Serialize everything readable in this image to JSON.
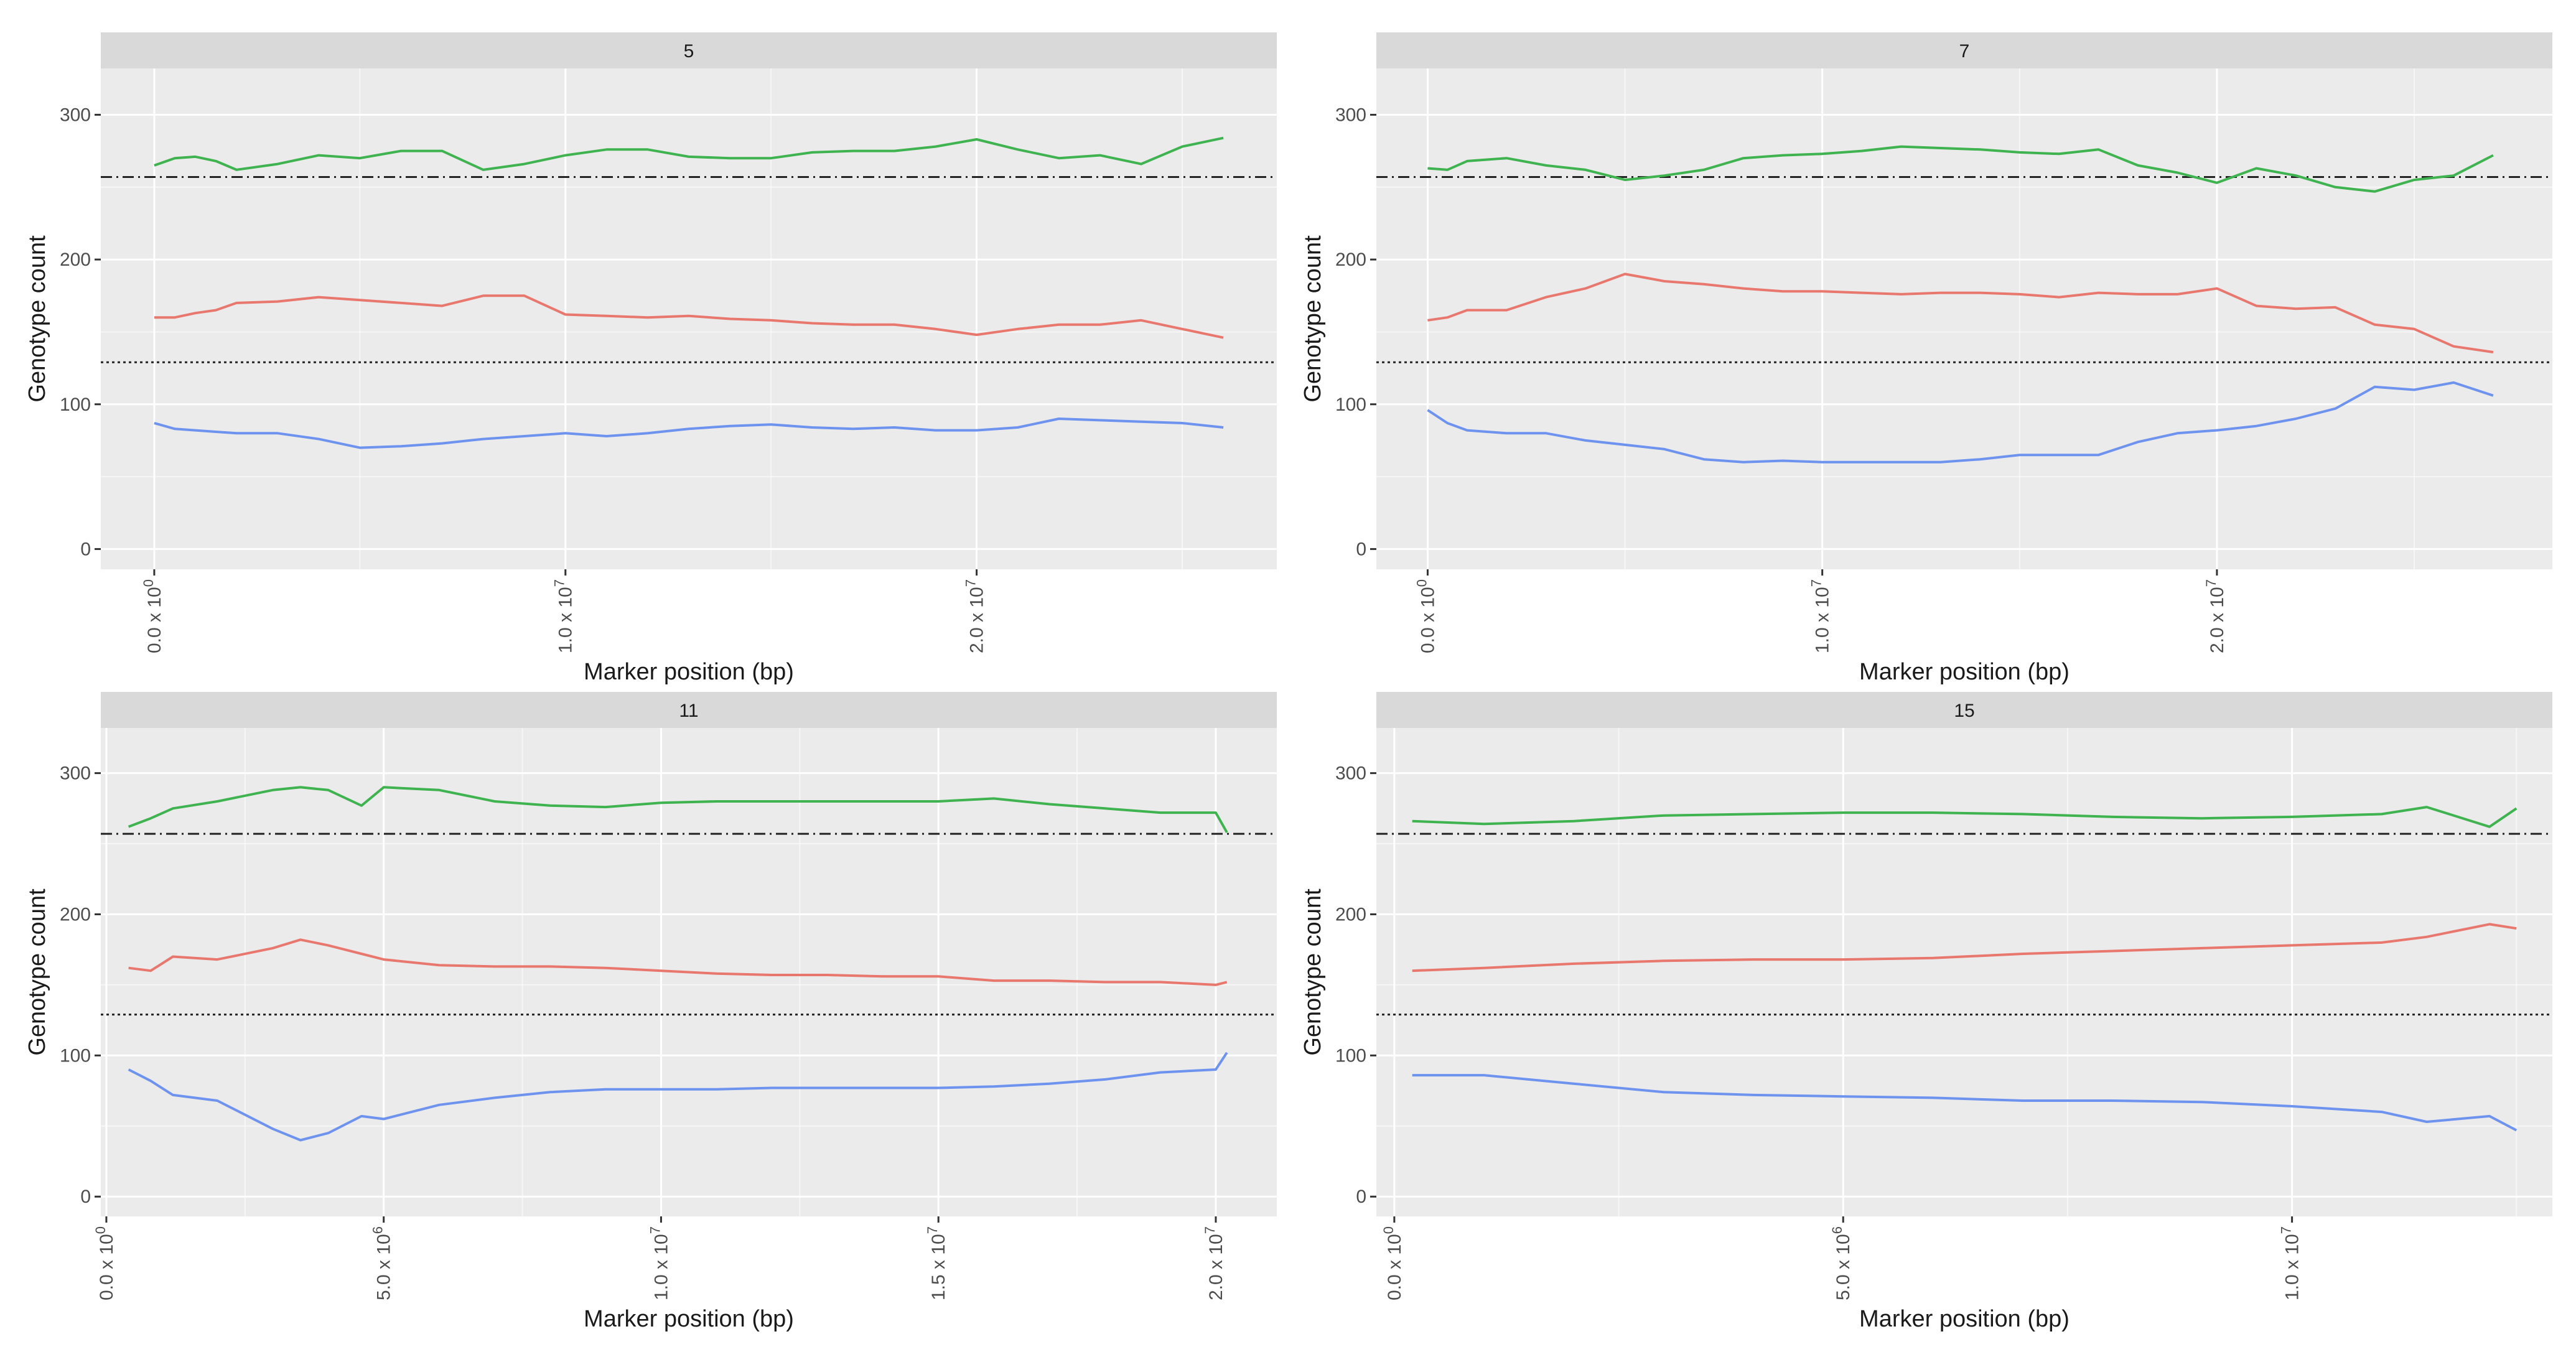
{
  "chart_data": [
    {
      "type": "line",
      "panel": "5",
      "xlabel": "Marker position (bp)",
      "ylabel": "Genotype count",
      "ylim": [
        -14,
        332
      ],
      "xlim": [
        -1300000,
        27300000
      ],
      "yticks": [
        0,
        100,
        200,
        300
      ],
      "xticks": [
        {
          "value": 0,
          "mantissa": "0.0",
          "exp": "0"
        },
        {
          "value": 10000000,
          "mantissa": "1.0",
          "exp": "7"
        },
        {
          "value": 20000000,
          "mantissa": "2.0",
          "exp": "7"
        }
      ],
      "hlines": [
        {
          "y": 257,
          "style": "dotdash"
        },
        {
          "y": 129,
          "style": "dotted"
        }
      ],
      "series": [
        {
          "name": "green",
          "color": "#3fb34f",
          "x": [
            0,
            500000,
            1000000,
            1500000,
            2000000,
            3000000,
            4000000,
            5000000,
            6000000,
            7000000,
            8000000,
            9000000,
            10000000,
            11000000,
            12000000,
            13000000,
            14000000,
            15000000,
            16000000,
            17000000,
            18000000,
            19000000,
            20000000,
            21000000,
            22000000,
            23000000,
            24000000,
            25000000,
            26000000
          ],
          "y": [
            265,
            270,
            271,
            268,
            262,
            266,
            272,
            270,
            275,
            275,
            262,
            266,
            272,
            276,
            276,
            271,
            270,
            270,
            274,
            275,
            275,
            278,
            283,
            276,
            270,
            272,
            266,
            278,
            284
          ]
        },
        {
          "name": "red",
          "color": "#e8776e",
          "x": [
            0,
            500000,
            1000000,
            1500000,
            2000000,
            3000000,
            4000000,
            5000000,
            6000000,
            7000000,
            8000000,
            9000000,
            10000000,
            11000000,
            12000000,
            13000000,
            14000000,
            15000000,
            16000000,
            17000000,
            18000000,
            19000000,
            20000000,
            21000000,
            22000000,
            23000000,
            24000000,
            25000000,
            26000000
          ],
          "y": [
            160,
            160,
            163,
            165,
            170,
            171,
            174,
            172,
            170,
            168,
            175,
            175,
            162,
            161,
            160,
            161,
            159,
            158,
            156,
            155,
            155,
            152,
            148,
            152,
            155,
            155,
            158,
            152,
            146
          ]
        },
        {
          "name": "blue",
          "color": "#6e93ee",
          "x": [
            0,
            500000,
            1000000,
            1500000,
            2000000,
            3000000,
            4000000,
            5000000,
            6000000,
            7000000,
            8000000,
            9000000,
            10000000,
            11000000,
            12000000,
            13000000,
            14000000,
            15000000,
            16000000,
            17000000,
            18000000,
            19000000,
            20000000,
            21000000,
            22000000,
            23000000,
            24000000,
            25000000,
            26000000
          ],
          "y": [
            87,
            83,
            82,
            81,
            80,
            80,
            76,
            70,
            71,
            73,
            76,
            78,
            80,
            78,
            80,
            83,
            85,
            86,
            84,
            83,
            84,
            82,
            82,
            84,
            90,
            89,
            88,
            87,
            84
          ]
        }
      ]
    },
    {
      "type": "line",
      "panel": "7",
      "xlabel": "Marker position (bp)",
      "ylabel": "Genotype count",
      "ylim": [
        -14,
        332
      ],
      "xlim": [
        -1300000,
        28500000
      ],
      "yticks": [
        0,
        100,
        200,
        300
      ],
      "xticks": [
        {
          "value": 0,
          "mantissa": "0.0",
          "exp": "0"
        },
        {
          "value": 10000000,
          "mantissa": "1.0",
          "exp": "7"
        },
        {
          "value": 20000000,
          "mantissa": "2.0",
          "exp": "7"
        }
      ],
      "hlines": [
        {
          "y": 257,
          "style": "dotdash"
        },
        {
          "y": 129,
          "style": "dotted"
        }
      ],
      "series": [
        {
          "name": "green",
          "color": "#3fb34f",
          "x": [
            0,
            500000,
            1000000,
            2000000,
            3000000,
            4000000,
            5000000,
            6000000,
            7000000,
            8000000,
            9000000,
            10000000,
            11000000,
            12000000,
            13000000,
            14000000,
            15000000,
            16000000,
            17000000,
            18000000,
            19000000,
            20000000,
            21000000,
            22000000,
            23000000,
            24000000,
            25000000,
            26000000,
            27000000
          ],
          "y": [
            263,
            262,
            268,
            270,
            265,
            262,
            255,
            258,
            262,
            270,
            272,
            273,
            275,
            278,
            277,
            276,
            274,
            273,
            276,
            265,
            260,
            253,
            263,
            258,
            250,
            247,
            255,
            258,
            272
          ]
        },
        {
          "name": "red",
          "color": "#e8776e",
          "x": [
            0,
            500000,
            1000000,
            2000000,
            3000000,
            4000000,
            5000000,
            6000000,
            7000000,
            8000000,
            9000000,
            10000000,
            11000000,
            12000000,
            13000000,
            14000000,
            15000000,
            16000000,
            17000000,
            18000000,
            19000000,
            20000000,
            21000000,
            22000000,
            23000000,
            24000000,
            25000000,
            26000000,
            27000000
          ],
          "y": [
            158,
            160,
            165,
            165,
            174,
            180,
            190,
            185,
            183,
            180,
            178,
            178,
            177,
            176,
            177,
            177,
            176,
            174,
            177,
            176,
            176,
            180,
            168,
            166,
            167,
            155,
            152,
            140,
            136
          ]
        },
        {
          "name": "blue",
          "color": "#6e93ee",
          "x": [
            0,
            500000,
            1000000,
            2000000,
            3000000,
            4000000,
            5000000,
            6000000,
            7000000,
            8000000,
            9000000,
            10000000,
            11000000,
            12000000,
            13000000,
            14000000,
            15000000,
            16000000,
            17000000,
            18000000,
            19000000,
            20000000,
            21000000,
            22000000,
            23000000,
            24000000,
            25000000,
            26000000,
            27000000
          ],
          "y": [
            96,
            87,
            82,
            80,
            80,
            75,
            72,
            69,
            62,
            60,
            61,
            60,
            60,
            60,
            60,
            62,
            65,
            65,
            65,
            74,
            80,
            82,
            85,
            90,
            97,
            112,
            110,
            115,
            106
          ]
        }
      ]
    },
    {
      "type": "line",
      "panel": "11",
      "xlabel": "Marker position (bp)",
      "ylabel": "Genotype count",
      "ylim": [
        -14,
        332
      ],
      "xlim": [
        -100000,
        21100000
      ],
      "yticks": [
        0,
        100,
        200,
        300
      ],
      "xticks": [
        {
          "value": 0,
          "mantissa": "0.0",
          "exp": "0"
        },
        {
          "value": 5000000,
          "mantissa": "5.0",
          "exp": "6"
        },
        {
          "value": 10000000,
          "mantissa": "1.0",
          "exp": "7"
        },
        {
          "value": 15000000,
          "mantissa": "1.5",
          "exp": "7"
        },
        {
          "value": 20000000,
          "mantissa": "2.0",
          "exp": "7"
        }
      ],
      "hlines": [
        {
          "y": 257,
          "style": "dotdash"
        },
        {
          "y": 129,
          "style": "dotted"
        }
      ],
      "series": [
        {
          "name": "green",
          "color": "#3fb34f",
          "x": [
            400000,
            800000,
            1200000,
            2000000,
            3000000,
            3500000,
            4000000,
            4600000,
            5000000,
            6000000,
            7000000,
            8000000,
            9000000,
            10000000,
            11000000,
            12000000,
            13000000,
            14000000,
            15000000,
            16000000,
            17000000,
            18000000,
            19000000,
            20000000,
            20200000
          ],
          "y": [
            262,
            268,
            275,
            280,
            288,
            290,
            288,
            277,
            290,
            288,
            280,
            277,
            276,
            279,
            280,
            280,
            280,
            280,
            280,
            282,
            278,
            275,
            272,
            272,
            258
          ]
        },
        {
          "name": "red",
          "color": "#e8776e",
          "x": [
            400000,
            800000,
            1200000,
            2000000,
            3000000,
            3500000,
            4000000,
            4600000,
            5000000,
            6000000,
            7000000,
            8000000,
            9000000,
            10000000,
            11000000,
            12000000,
            13000000,
            14000000,
            15000000,
            16000000,
            17000000,
            18000000,
            19000000,
            20000000,
            20200000
          ],
          "y": [
            162,
            160,
            170,
            168,
            176,
            182,
            178,
            172,
            168,
            164,
            163,
            163,
            162,
            160,
            158,
            157,
            157,
            156,
            156,
            153,
            153,
            152,
            152,
            150,
            152
          ]
        },
        {
          "name": "blue",
          "color": "#6e93ee",
          "x": [
            400000,
            800000,
            1200000,
            2000000,
            3000000,
            3500000,
            4000000,
            4600000,
            5000000,
            6000000,
            7000000,
            8000000,
            9000000,
            10000000,
            11000000,
            12000000,
            13000000,
            14000000,
            15000000,
            16000000,
            17000000,
            18000000,
            19000000,
            20000000,
            20200000
          ],
          "y": [
            90,
            82,
            72,
            68,
            48,
            40,
            45,
            57,
            55,
            65,
            70,
            74,
            76,
            76,
            76,
            77,
            77,
            77,
            77,
            78,
            80,
            83,
            88,
            90,
            102
          ]
        }
      ]
    },
    {
      "type": "line",
      "panel": "15",
      "xlabel": "Marker position (bp)",
      "ylabel": "Genotype count",
      "ylim": [
        -14,
        332
      ],
      "xlim": [
        -200000,
        12900000
      ],
      "yticks": [
        0,
        100,
        200,
        300
      ],
      "xticks": [
        {
          "value": 0,
          "mantissa": "0.0",
          "exp": "0"
        },
        {
          "value": 5000000,
          "mantissa": "5.0",
          "exp": "6"
        },
        {
          "value": 10000000,
          "mantissa": "1.0",
          "exp": "7"
        }
      ],
      "hlines": [
        {
          "y": 257,
          "style": "dotdash"
        },
        {
          "y": 129,
          "style": "dotted"
        }
      ],
      "series": [
        {
          "name": "green",
          "color": "#3fb34f",
          "x": [
            200000,
            1000000,
            2000000,
            3000000,
            4000000,
            5000000,
            6000000,
            7000000,
            8000000,
            9000000,
            10000000,
            11000000,
            11500000,
            12200000,
            12500000
          ],
          "y": [
            266,
            264,
            266,
            270,
            271,
            272,
            272,
            271,
            269,
            268,
            269,
            271,
            276,
            262,
            275
          ]
        },
        {
          "name": "red",
          "color": "#e8776e",
          "x": [
            200000,
            1000000,
            2000000,
            3000000,
            4000000,
            5000000,
            6000000,
            7000000,
            8000000,
            9000000,
            10000000,
            11000000,
            11500000,
            12200000,
            12500000
          ],
          "y": [
            160,
            162,
            165,
            167,
            168,
            168,
            169,
            172,
            174,
            176,
            178,
            180,
            184,
            193,
            190
          ]
        },
        {
          "name": "blue",
          "color": "#6e93ee",
          "x": [
            200000,
            1000000,
            2000000,
            3000000,
            4000000,
            5000000,
            6000000,
            7000000,
            8000000,
            9000000,
            10000000,
            11000000,
            11500000,
            12200000,
            12500000
          ],
          "y": [
            86,
            86,
            80,
            74,
            72,
            71,
            70,
            68,
            68,
            67,
            64,
            60,
            53,
            57,
            47
          ]
        }
      ]
    }
  ]
}
